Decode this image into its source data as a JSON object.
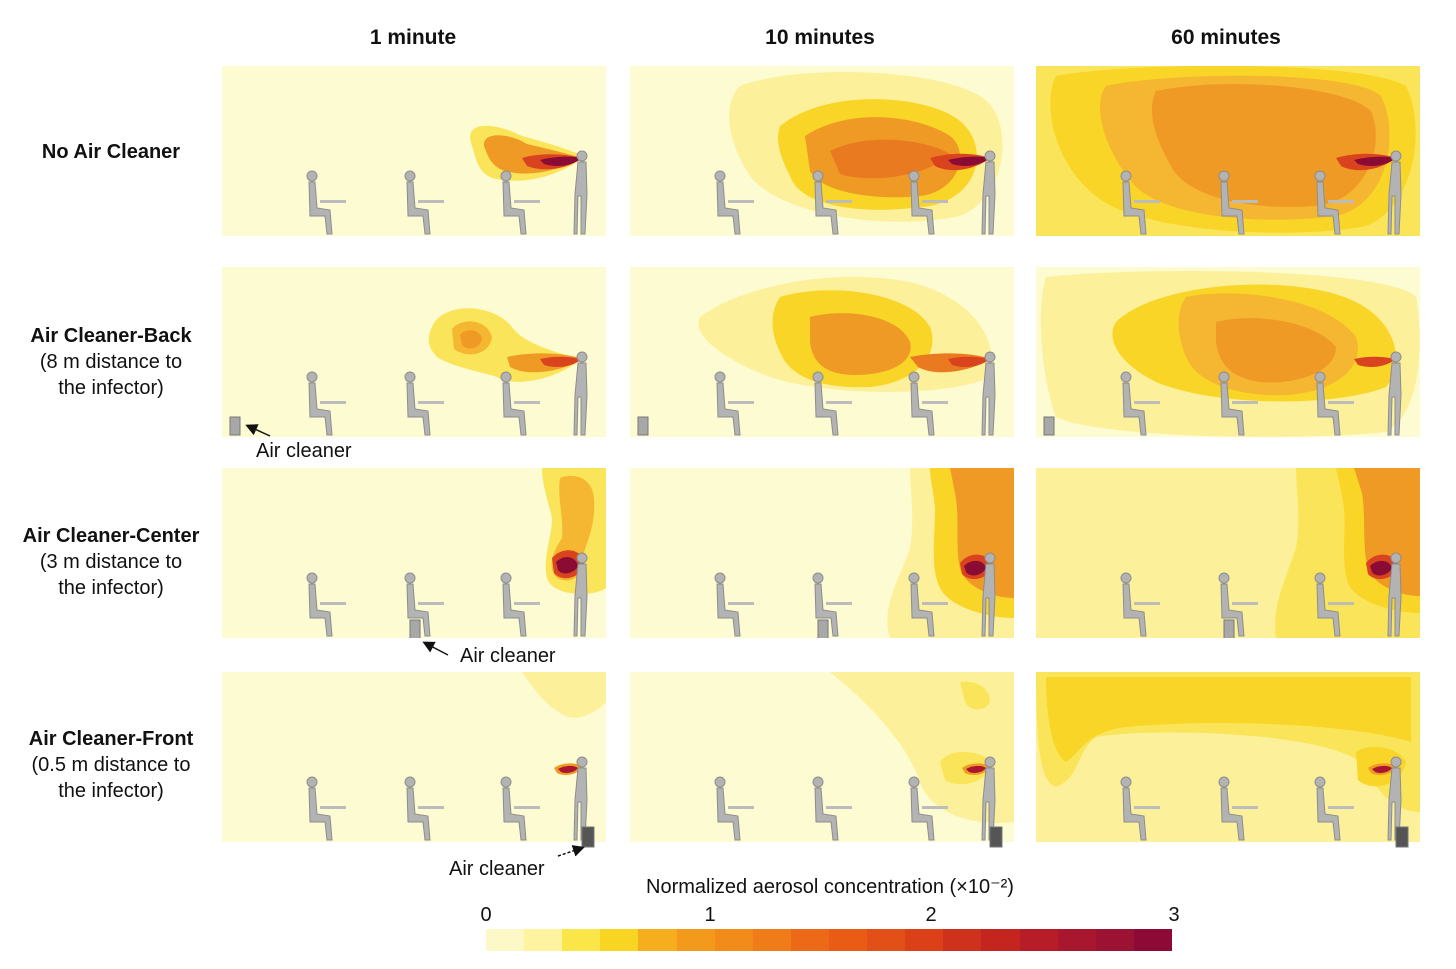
{
  "columns": [
    "1 minute",
    "10 minutes",
    "60 minutes"
  ],
  "rows": [
    {
      "title": "No Air Cleaner",
      "subtitle": ""
    },
    {
      "title": "Air Cleaner-Back",
      "subtitle": "(8 m distance to the infector)"
    },
    {
      "title": "Air Cleaner-Center",
      "subtitle": "(3 m distance to the infector)"
    },
    {
      "title": "Air Cleaner-Front",
      "subtitle": "(0.5 m distance to the infector)"
    }
  ],
  "annotations": {
    "back": "Air cleaner",
    "center": "Air cleaner",
    "front": "Air cleaner"
  },
  "colorbar": {
    "title": "Normalized aerosol concentration (×10⁻²)",
    "ticks": [
      "0",
      "1",
      "2",
      "3"
    ],
    "colors": [
      "#fdf8c8",
      "#fdf3a0",
      "#fbe64a",
      "#f8d423",
      "#f6ad1e",
      "#f39a1c",
      "#f18c1a",
      "#ef7c18",
      "#ec6a17",
      "#e85c16",
      "#e24f17",
      "#db4018",
      "#cf321c",
      "#c4261f",
      "#b61d26",
      "#a8172e",
      "#9c1232",
      "#8e0a36"
    ]
  }
}
